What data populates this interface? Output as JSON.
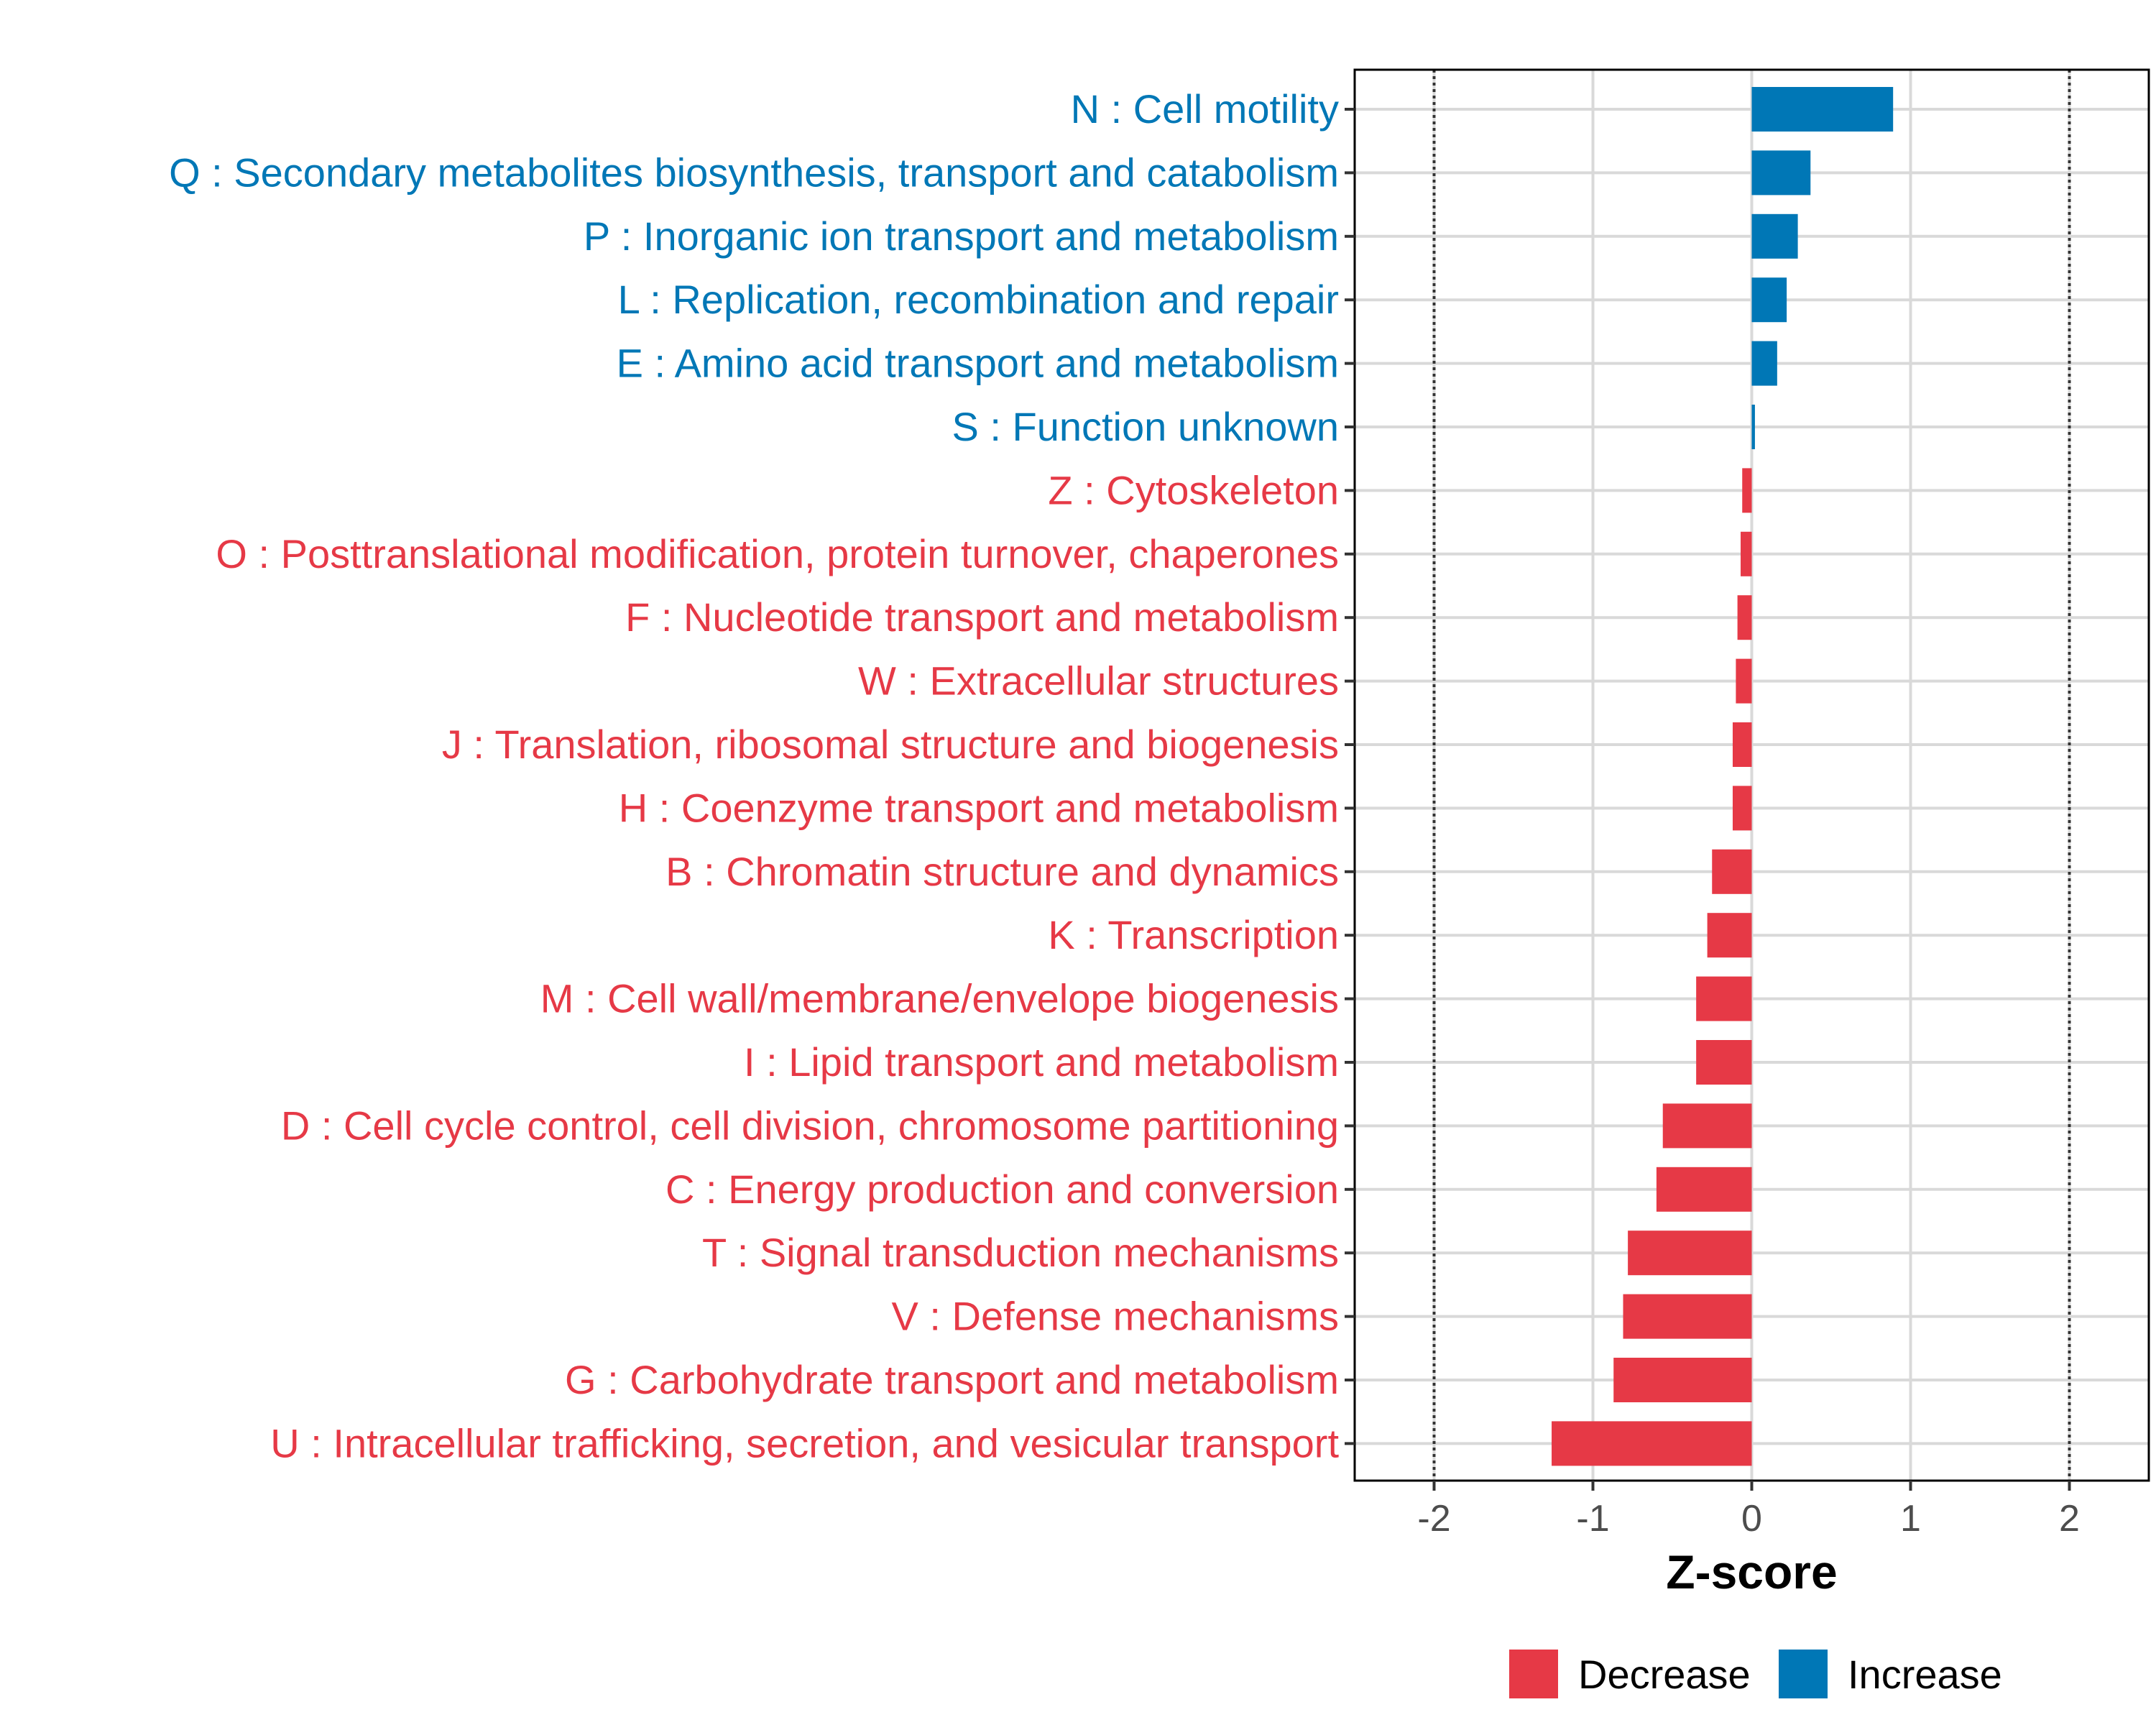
{
  "chart_data": {
    "type": "bar",
    "orientation": "horizontal",
    "categories": [
      "N : Cell motility",
      "Q : Secondary metabolites biosynthesis, transport and catabolism",
      "P : Inorganic ion transport and metabolism",
      "L : Replication, recombination and repair",
      "E : Amino acid transport and metabolism",
      "S : Function unknown",
      "Z : Cytoskeleton",
      "O : Posttranslational modification, protein turnover, chaperones",
      "F : Nucleotide transport and metabolism",
      "W : Extracellular structures",
      "J : Translation, ribosomal structure and biogenesis",
      "H : Coenzyme transport and metabolism",
      "B : Chromatin structure and dynamics",
      "K : Transcription",
      "M : Cell wall/membrane/envelope biogenesis",
      "I : Lipid transport and metabolism",
      "D : Cell cycle control, cell division, chromosome partitioning",
      "C : Energy production and conversion",
      "T : Signal transduction mechanisms",
      "V : Defense mechanisms",
      "G : Carbohydrate transport and metabolism",
      "U : Intracellular trafficking, secretion, and vesicular transport"
    ],
    "values": [
      0.89,
      0.37,
      0.29,
      0.22,
      0.16,
      0.02,
      -0.06,
      -0.07,
      -0.09,
      -0.1,
      -0.12,
      -0.12,
      -0.25,
      -0.28,
      -0.35,
      -0.35,
      -0.56,
      -0.6,
      -0.78,
      -0.81,
      -0.87,
      -1.26
    ],
    "groups": [
      "Increase",
      "Increase",
      "Increase",
      "Increase",
      "Increase",
      "Increase",
      "Decrease",
      "Decrease",
      "Decrease",
      "Decrease",
      "Decrease",
      "Decrease",
      "Decrease",
      "Decrease",
      "Decrease",
      "Decrease",
      "Decrease",
      "Decrease",
      "Decrease",
      "Decrease",
      "Decrease",
      "Decrease"
    ],
    "xlabel": "Z-score",
    "ylabel": "",
    "xlim": [
      -2.5,
      2.5
    ],
    "xticks": [
      -2,
      -1,
      0,
      1,
      2
    ],
    "xtick_labels": [
      "-2",
      "-1",
      "0",
      "1",
      "2"
    ],
    "reference_lines": [
      -2,
      2
    ],
    "legend": {
      "position": "bottom",
      "items": [
        {
          "label": "Decrease",
          "color": "#e63946"
        },
        {
          "label": "Increase",
          "color": "#0077b6"
        }
      ]
    },
    "colors": {
      "Decrease": "#e63946",
      "Increase": "#0077b6"
    }
  }
}
